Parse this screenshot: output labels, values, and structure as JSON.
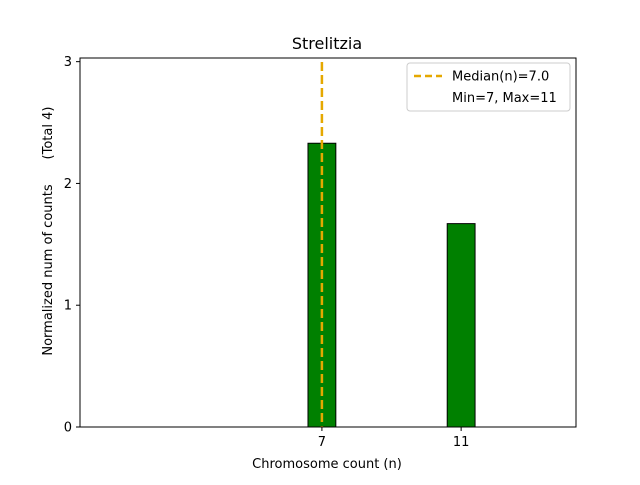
{
  "chart_data": {
    "type": "bar",
    "title": "Strelitzia",
    "xlabel": "Chromosome count (n)",
    "ylabel": "Normalized num of counts",
    "ylabel_note": "(Total 4)",
    "x_range": [
      0.05,
      14.3
    ],
    "ylim": [
      0,
      3.03
    ],
    "yticks": [
      0,
      1,
      2,
      3
    ],
    "xticks": [
      7,
      11
    ],
    "bar_width": 0.8,
    "bars": [
      {
        "x": 7,
        "value": 2.33
      },
      {
        "x": 11,
        "value": 1.67
      }
    ],
    "median": 7.0,
    "legend": {
      "position": "top-right",
      "entries": [
        "Median(n)=7.0",
        "Min=7, Max=11"
      ]
    },
    "colors": {
      "bar": "#008000",
      "bar_edge": "#000000",
      "median": "#E5A800"
    }
  }
}
